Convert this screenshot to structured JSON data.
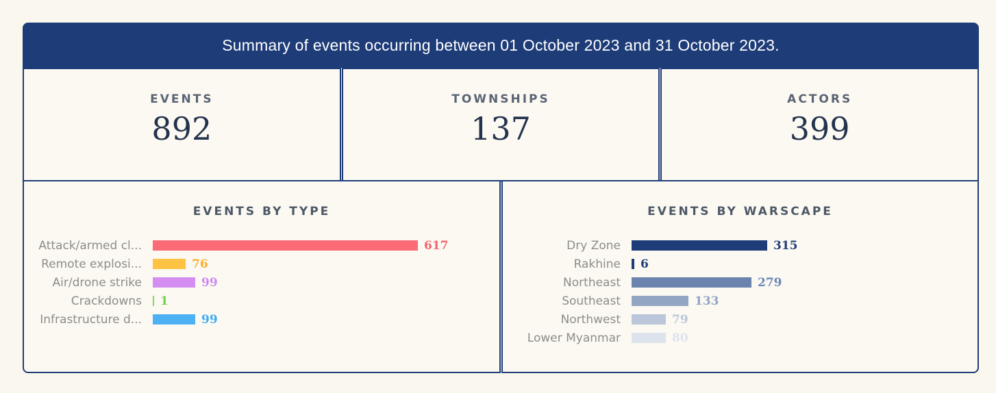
{
  "header": {
    "title": "Summary of events occurring between 01 October 2023 and 31 October 2023."
  },
  "stats": [
    {
      "label": "EVENTS",
      "value": "892"
    },
    {
      "label": "TOWNSHIPS",
      "value": "137"
    },
    {
      "label": "ACTORS",
      "value": "399"
    }
  ],
  "colors": {
    "navy": "#1e3c78",
    "page_background": "#faf7ef",
    "panel_background": "#fbf9f2",
    "header_text": "#ffffff",
    "stat_label": "#5a6474",
    "stat_value": "#24334d",
    "chart_title": "#4d5866",
    "bar_label": "#8d8d89"
  },
  "chart_data": [
    {
      "type": "bar",
      "orientation": "horizontal",
      "title": "EVENTS BY TYPE",
      "categories": [
        "Attack/armed cl...",
        "Remote explosi...",
        "Air/drone strike",
        "Crackdowns",
        "Infrastructure d..."
      ],
      "values": [
        617,
        76,
        99,
        1,
        99
      ],
      "bar_colors": [
        "#fa6b75",
        "#fec343",
        "#d48ef1",
        "#82da5b",
        "#4db2f4"
      ],
      "value_colors": [
        "#f4646f",
        "#fcae2c",
        "#cd8af0",
        "#6ed24b",
        "#3fabf2"
      ],
      "xlim": [
        0,
        660
      ],
      "grid": false,
      "legend": false
    },
    {
      "type": "bar",
      "orientation": "horizontal",
      "title": "EVENTS BY WARSCAPE",
      "categories": [
        "Dry Zone",
        "Rakhine",
        "Northeast",
        "Southeast",
        "Northwest",
        "Lower Myanmar"
      ],
      "values": [
        315,
        6,
        279,
        133,
        79,
        80
      ],
      "bar_colors": [
        "#1e3c78",
        "#1e3c78",
        "#6a84ae",
        "#92a6c4",
        "#bcc6da",
        "#dde3ed"
      ],
      "value_colors": [
        "#1e3c78",
        "#1e3c78",
        "#6d87b3",
        "#8fa4c4",
        "#bcc6da",
        "#dde3ed"
      ],
      "xlim": [
        0,
        660
      ],
      "grid": false,
      "legend": false
    }
  ]
}
